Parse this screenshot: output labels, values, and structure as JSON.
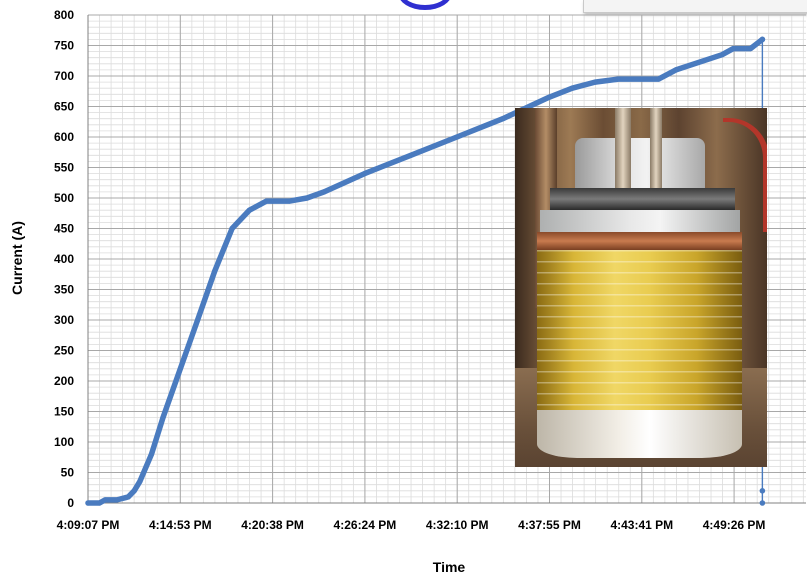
{
  "chart_data": {
    "type": "line",
    "title": "",
    "xlabel": "Time",
    "ylabel": "Current (A)",
    "ylim": [
      0,
      800
    ],
    "ytick_step": 50,
    "y_tick_labels": [
      "0",
      "50",
      "100",
      "150",
      "200",
      "250",
      "300",
      "350",
      "400",
      "450",
      "500",
      "550",
      "600",
      "650",
      "700",
      "750",
      "800"
    ],
    "x_tick_labels": [
      "4:09:07 PM",
      "4:14:53 PM",
      "4:20:38 PM",
      "4:26:24 PM",
      "4:32:10 PM",
      "4:37:55 PM",
      "4:43:41 PM",
      "4:49:26 PM"
    ],
    "grid": true,
    "legend": "none",
    "series": [
      {
        "color": "#4a7bbf",
        "x": [
          "4:09:07 PM",
          "4:09:50 PM",
          "4:10:11 PM",
          "4:10:55 PM",
          "4:11:38 PM",
          "4:12:00 PM",
          "4:12:21 PM",
          "4:13:05 PM",
          "4:13:48 PM",
          "4:14:53 PM",
          "4:15:58 PM",
          "4:17:02 PM",
          "4:18:07 PM",
          "4:19:12 PM",
          "4:19:55 PM",
          "4:20:16 PM",
          "4:20:38 PM",
          "4:21:43 PM",
          "4:22:48 PM",
          "4:23:52 PM",
          "4:26:24 PM",
          "4:29:17 PM",
          "4:32:10 PM",
          "4:35:02 PM",
          "4:37:55 PM",
          "4:39:22 PM",
          "4:40:48 PM",
          "4:42:15 PM",
          "4:43:41 PM",
          "4:44:46 PM",
          "4:45:51 PM",
          "4:48:44 PM",
          "4:49:26 PM",
          "4:50:31 PM",
          "4:51:15 PM"
        ],
        "y": [
          0,
          0,
          5,
          5,
          10,
          20,
          35,
          80,
          140,
          220,
          300,
          380,
          450,
          480,
          490,
          495,
          495,
          495,
          500,
          510,
          540,
          570,
          600,
          630,
          665,
          680,
          690,
          695,
          695,
          695,
          710,
          735,
          745,
          745,
          760
        ]
      }
    ]
  },
  "top_box_color": "#f4f4f4",
  "photo_icon": "coil-photo"
}
